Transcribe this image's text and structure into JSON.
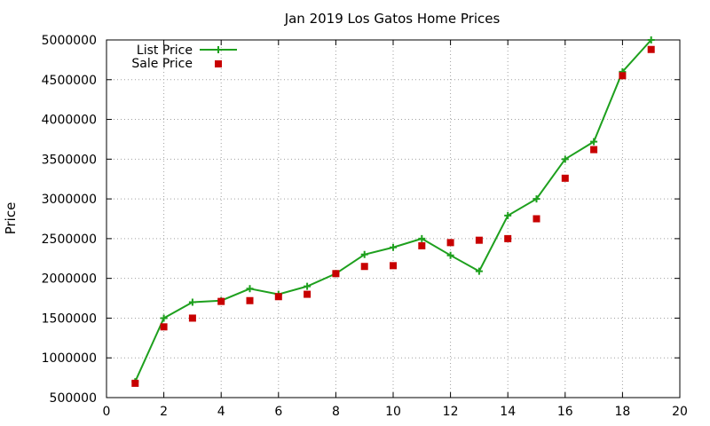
{
  "chart_data": {
    "type": "line",
    "title": "Jan 2019 Los Gatos Home Prices",
    "xlabel": "",
    "ylabel": "Price",
    "xlim": [
      0,
      20
    ],
    "ylim": [
      500000,
      5000000
    ],
    "xticks": [
      0,
      2,
      4,
      6,
      8,
      10,
      12,
      14,
      16,
      18,
      20
    ],
    "yticks": [
      500000,
      1000000,
      1500000,
      2000000,
      2500000,
      3000000,
      3500000,
      4000000,
      4500000,
      5000000
    ],
    "grid": true,
    "legend_position": "top-left",
    "x": [
      1,
      2,
      3,
      4,
      5,
      6,
      7,
      8,
      9,
      10,
      11,
      12,
      13,
      14,
      15,
      16,
      17,
      18,
      19
    ],
    "series": [
      {
        "name": "List Price",
        "style": "line-with-plus-points",
        "color": "#1ea01e",
        "values": [
          700000,
          1500000,
          1700000,
          1720000,
          1870000,
          1800000,
          1900000,
          2060000,
          2300000,
          2390000,
          2500000,
          2290000,
          2090000,
          2790000,
          3000000,
          3500000,
          3720000,
          4600000,
          5000000
        ]
      },
      {
        "name": "Sale Price",
        "style": "square-points",
        "color": "#c80000",
        "values": [
          680000,
          1390000,
          1500000,
          1710000,
          1720000,
          1770000,
          1800000,
          2060000,
          2150000,
          2160000,
          2410000,
          2450000,
          2480000,
          2500000,
          2750000,
          3260000,
          3620000,
          4550000,
          4880000
        ]
      }
    ]
  }
}
